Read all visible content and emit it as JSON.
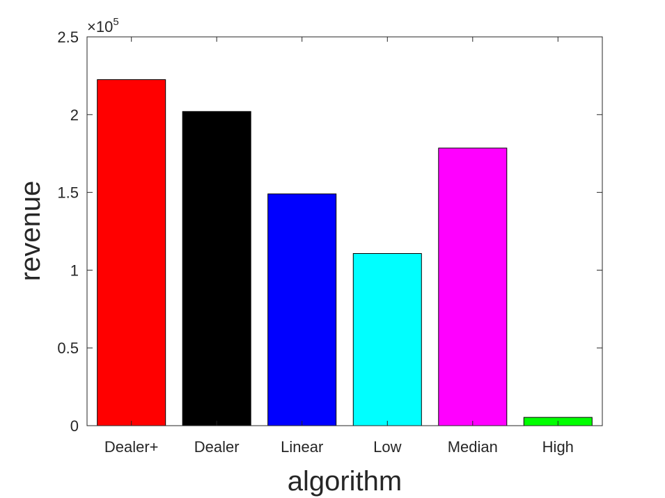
{
  "chart_data": {
    "type": "bar",
    "categories": [
      "Dealer+",
      "Dealer",
      "Linear",
      "Low",
      "Median",
      "High"
    ],
    "values": [
      222500,
      202000,
      149000,
      110700,
      178500,
      5300
    ],
    "colors": [
      "#ff0000",
      "#000000",
      "#0000ff",
      "#00ffff",
      "#ff00ff",
      "#00ff00"
    ],
    "xlabel": "algorithm",
    "ylabel": "revenue",
    "ylim": [
      0,
      250000
    ],
    "yticks": [
      0,
      50000,
      100000,
      150000,
      200000,
      250000
    ],
    "ytick_labels": [
      "0",
      "0.5",
      "1",
      "1.5",
      "2",
      "2.5"
    ],
    "exponent_base": "×10",
    "exponent_power": "5",
    "grid": false,
    "box": true
  }
}
